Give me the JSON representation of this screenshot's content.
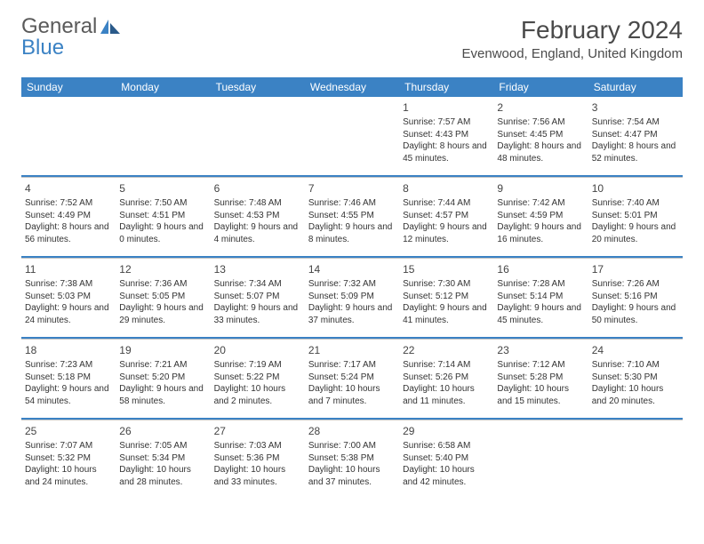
{
  "logo": {
    "text1": "General",
    "text2": "Blue"
  },
  "title": "February 2024",
  "location": "Evenwood, England, United Kingdom",
  "colors": {
    "header_bg": "#3b82c4",
    "header_text": "#ffffff",
    "logo_gray": "#5a5a5a",
    "logo_blue": "#3b82c4",
    "body_text": "#333333",
    "divider": "#3b82c4"
  },
  "weekdays": [
    "Sunday",
    "Monday",
    "Tuesday",
    "Wednesday",
    "Thursday",
    "Friday",
    "Saturday"
  ],
  "cells": [
    null,
    null,
    null,
    null,
    {
      "n": "1",
      "sunrise": "7:57 AM",
      "sunset": "4:43 PM",
      "daylight": "8 hours and 45 minutes."
    },
    {
      "n": "2",
      "sunrise": "7:56 AM",
      "sunset": "4:45 PM",
      "daylight": "8 hours and 48 minutes."
    },
    {
      "n": "3",
      "sunrise": "7:54 AM",
      "sunset": "4:47 PM",
      "daylight": "8 hours and 52 minutes."
    },
    {
      "n": "4",
      "sunrise": "7:52 AM",
      "sunset": "4:49 PM",
      "daylight": "8 hours and 56 minutes."
    },
    {
      "n": "5",
      "sunrise": "7:50 AM",
      "sunset": "4:51 PM",
      "daylight": "9 hours and 0 minutes."
    },
    {
      "n": "6",
      "sunrise": "7:48 AM",
      "sunset": "4:53 PM",
      "daylight": "9 hours and 4 minutes."
    },
    {
      "n": "7",
      "sunrise": "7:46 AM",
      "sunset": "4:55 PM",
      "daylight": "9 hours and 8 minutes."
    },
    {
      "n": "8",
      "sunrise": "7:44 AM",
      "sunset": "4:57 PM",
      "daylight": "9 hours and 12 minutes."
    },
    {
      "n": "9",
      "sunrise": "7:42 AM",
      "sunset": "4:59 PM",
      "daylight": "9 hours and 16 minutes."
    },
    {
      "n": "10",
      "sunrise": "7:40 AM",
      "sunset": "5:01 PM",
      "daylight": "9 hours and 20 minutes."
    },
    {
      "n": "11",
      "sunrise": "7:38 AM",
      "sunset": "5:03 PM",
      "daylight": "9 hours and 24 minutes."
    },
    {
      "n": "12",
      "sunrise": "7:36 AM",
      "sunset": "5:05 PM",
      "daylight": "9 hours and 29 minutes."
    },
    {
      "n": "13",
      "sunrise": "7:34 AM",
      "sunset": "5:07 PM",
      "daylight": "9 hours and 33 minutes."
    },
    {
      "n": "14",
      "sunrise": "7:32 AM",
      "sunset": "5:09 PM",
      "daylight": "9 hours and 37 minutes."
    },
    {
      "n": "15",
      "sunrise": "7:30 AM",
      "sunset": "5:12 PM",
      "daylight": "9 hours and 41 minutes."
    },
    {
      "n": "16",
      "sunrise": "7:28 AM",
      "sunset": "5:14 PM",
      "daylight": "9 hours and 45 minutes."
    },
    {
      "n": "17",
      "sunrise": "7:26 AM",
      "sunset": "5:16 PM",
      "daylight": "9 hours and 50 minutes."
    },
    {
      "n": "18",
      "sunrise": "7:23 AM",
      "sunset": "5:18 PM",
      "daylight": "9 hours and 54 minutes."
    },
    {
      "n": "19",
      "sunrise": "7:21 AM",
      "sunset": "5:20 PM",
      "daylight": "9 hours and 58 minutes."
    },
    {
      "n": "20",
      "sunrise": "7:19 AM",
      "sunset": "5:22 PM",
      "daylight": "10 hours and 2 minutes."
    },
    {
      "n": "21",
      "sunrise": "7:17 AM",
      "sunset": "5:24 PM",
      "daylight": "10 hours and 7 minutes."
    },
    {
      "n": "22",
      "sunrise": "7:14 AM",
      "sunset": "5:26 PM",
      "daylight": "10 hours and 11 minutes."
    },
    {
      "n": "23",
      "sunrise": "7:12 AM",
      "sunset": "5:28 PM",
      "daylight": "10 hours and 15 minutes."
    },
    {
      "n": "24",
      "sunrise": "7:10 AM",
      "sunset": "5:30 PM",
      "daylight": "10 hours and 20 minutes."
    },
    {
      "n": "25",
      "sunrise": "7:07 AM",
      "sunset": "5:32 PM",
      "daylight": "10 hours and 24 minutes."
    },
    {
      "n": "26",
      "sunrise": "7:05 AM",
      "sunset": "5:34 PM",
      "daylight": "10 hours and 28 minutes."
    },
    {
      "n": "27",
      "sunrise": "7:03 AM",
      "sunset": "5:36 PM",
      "daylight": "10 hours and 33 minutes."
    },
    {
      "n": "28",
      "sunrise": "7:00 AM",
      "sunset": "5:38 PM",
      "daylight": "10 hours and 37 minutes."
    },
    {
      "n": "29",
      "sunrise": "6:58 AM",
      "sunset": "5:40 PM",
      "daylight": "10 hours and 42 minutes."
    },
    null,
    null
  ],
  "labels": {
    "sunrise": "Sunrise:",
    "sunset": "Sunset:",
    "daylight": "Daylight:"
  }
}
